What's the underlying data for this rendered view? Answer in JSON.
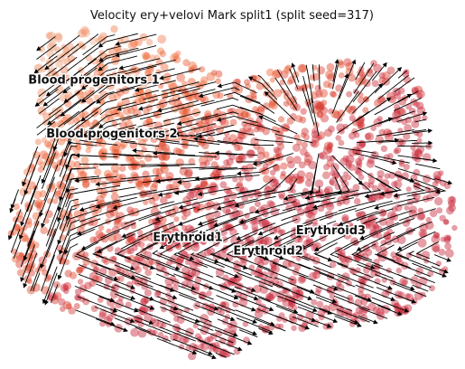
{
  "chart_data": {
    "type": "scatter",
    "title": "Velocity ery+velovi Mark split1 (split seed=317)",
    "embedding": "UMAP",
    "axes_visible": false,
    "overlay": "velocity streamlines with arrowheads",
    "colormap": [
      "#e8d3c4",
      "#f0a07a",
      "#f26b3a",
      "#e0452a",
      "#c8283a"
    ],
    "colormap_meaning": "cells colored by a continuous gradient from beige (progenitors, top-left) to red (erythroid)",
    "labels": [
      {
        "text": "Blood progenitors 1",
        "x": 0.19,
        "y": 0.84
      },
      {
        "text": "Blood progenitors 2",
        "x": 0.23,
        "y": 0.68
      },
      {
        "text": "Erythroid1",
        "x": 0.4,
        "y": 0.37
      },
      {
        "text": "Erythroid2",
        "x": 0.58,
        "y": 0.33
      },
      {
        "text": "Erythroid3",
        "x": 0.72,
        "y": 0.39
      }
    ]
  }
}
